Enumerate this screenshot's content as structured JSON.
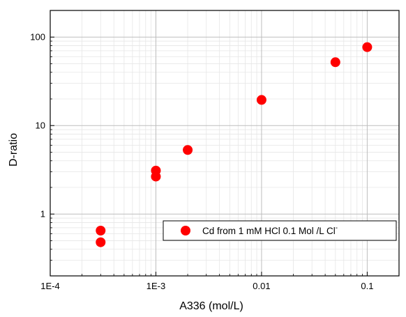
{
  "chart_data": {
    "type": "scatter",
    "title": "",
    "xlabel": "A336 (mol/L)",
    "ylabel": "D-ratio",
    "xscale": "log",
    "yscale": "log",
    "xlim": [
      0.0001,
      0.2
    ],
    "ylim": [
      0.2,
      200
    ],
    "grid": true,
    "legend_position": "center-right",
    "x_ticks": [
      {
        "value": 0.0001,
        "label": "1E-4"
      },
      {
        "value": 0.001,
        "label": "1E-3"
      },
      {
        "value": 0.01,
        "label": "0.01"
      },
      {
        "value": 0.1,
        "label": "0.1"
      }
    ],
    "y_ticks": [
      {
        "value": 1,
        "label": "1"
      },
      {
        "value": 10,
        "label": "10"
      },
      {
        "value": 100,
        "label": "100"
      }
    ],
    "series": [
      {
        "name": "Cd from 1 mM HCl 0.1 Mol /L Cl",
        "name_superscript": "-",
        "color": "#ff0000",
        "marker": "circle",
        "points": [
          {
            "x": 0.0003,
            "y": 0.48
          },
          {
            "x": 0.0003,
            "y": 0.65
          },
          {
            "x": 0.001,
            "y": 2.65
          },
          {
            "x": 0.001,
            "y": 3.1
          },
          {
            "x": 0.002,
            "y": 5.3
          },
          {
            "x": 0.01,
            "y": 19.5
          },
          {
            "x": 0.05,
            "y": 52
          },
          {
            "x": 0.1,
            "y": 77
          }
        ]
      }
    ]
  }
}
